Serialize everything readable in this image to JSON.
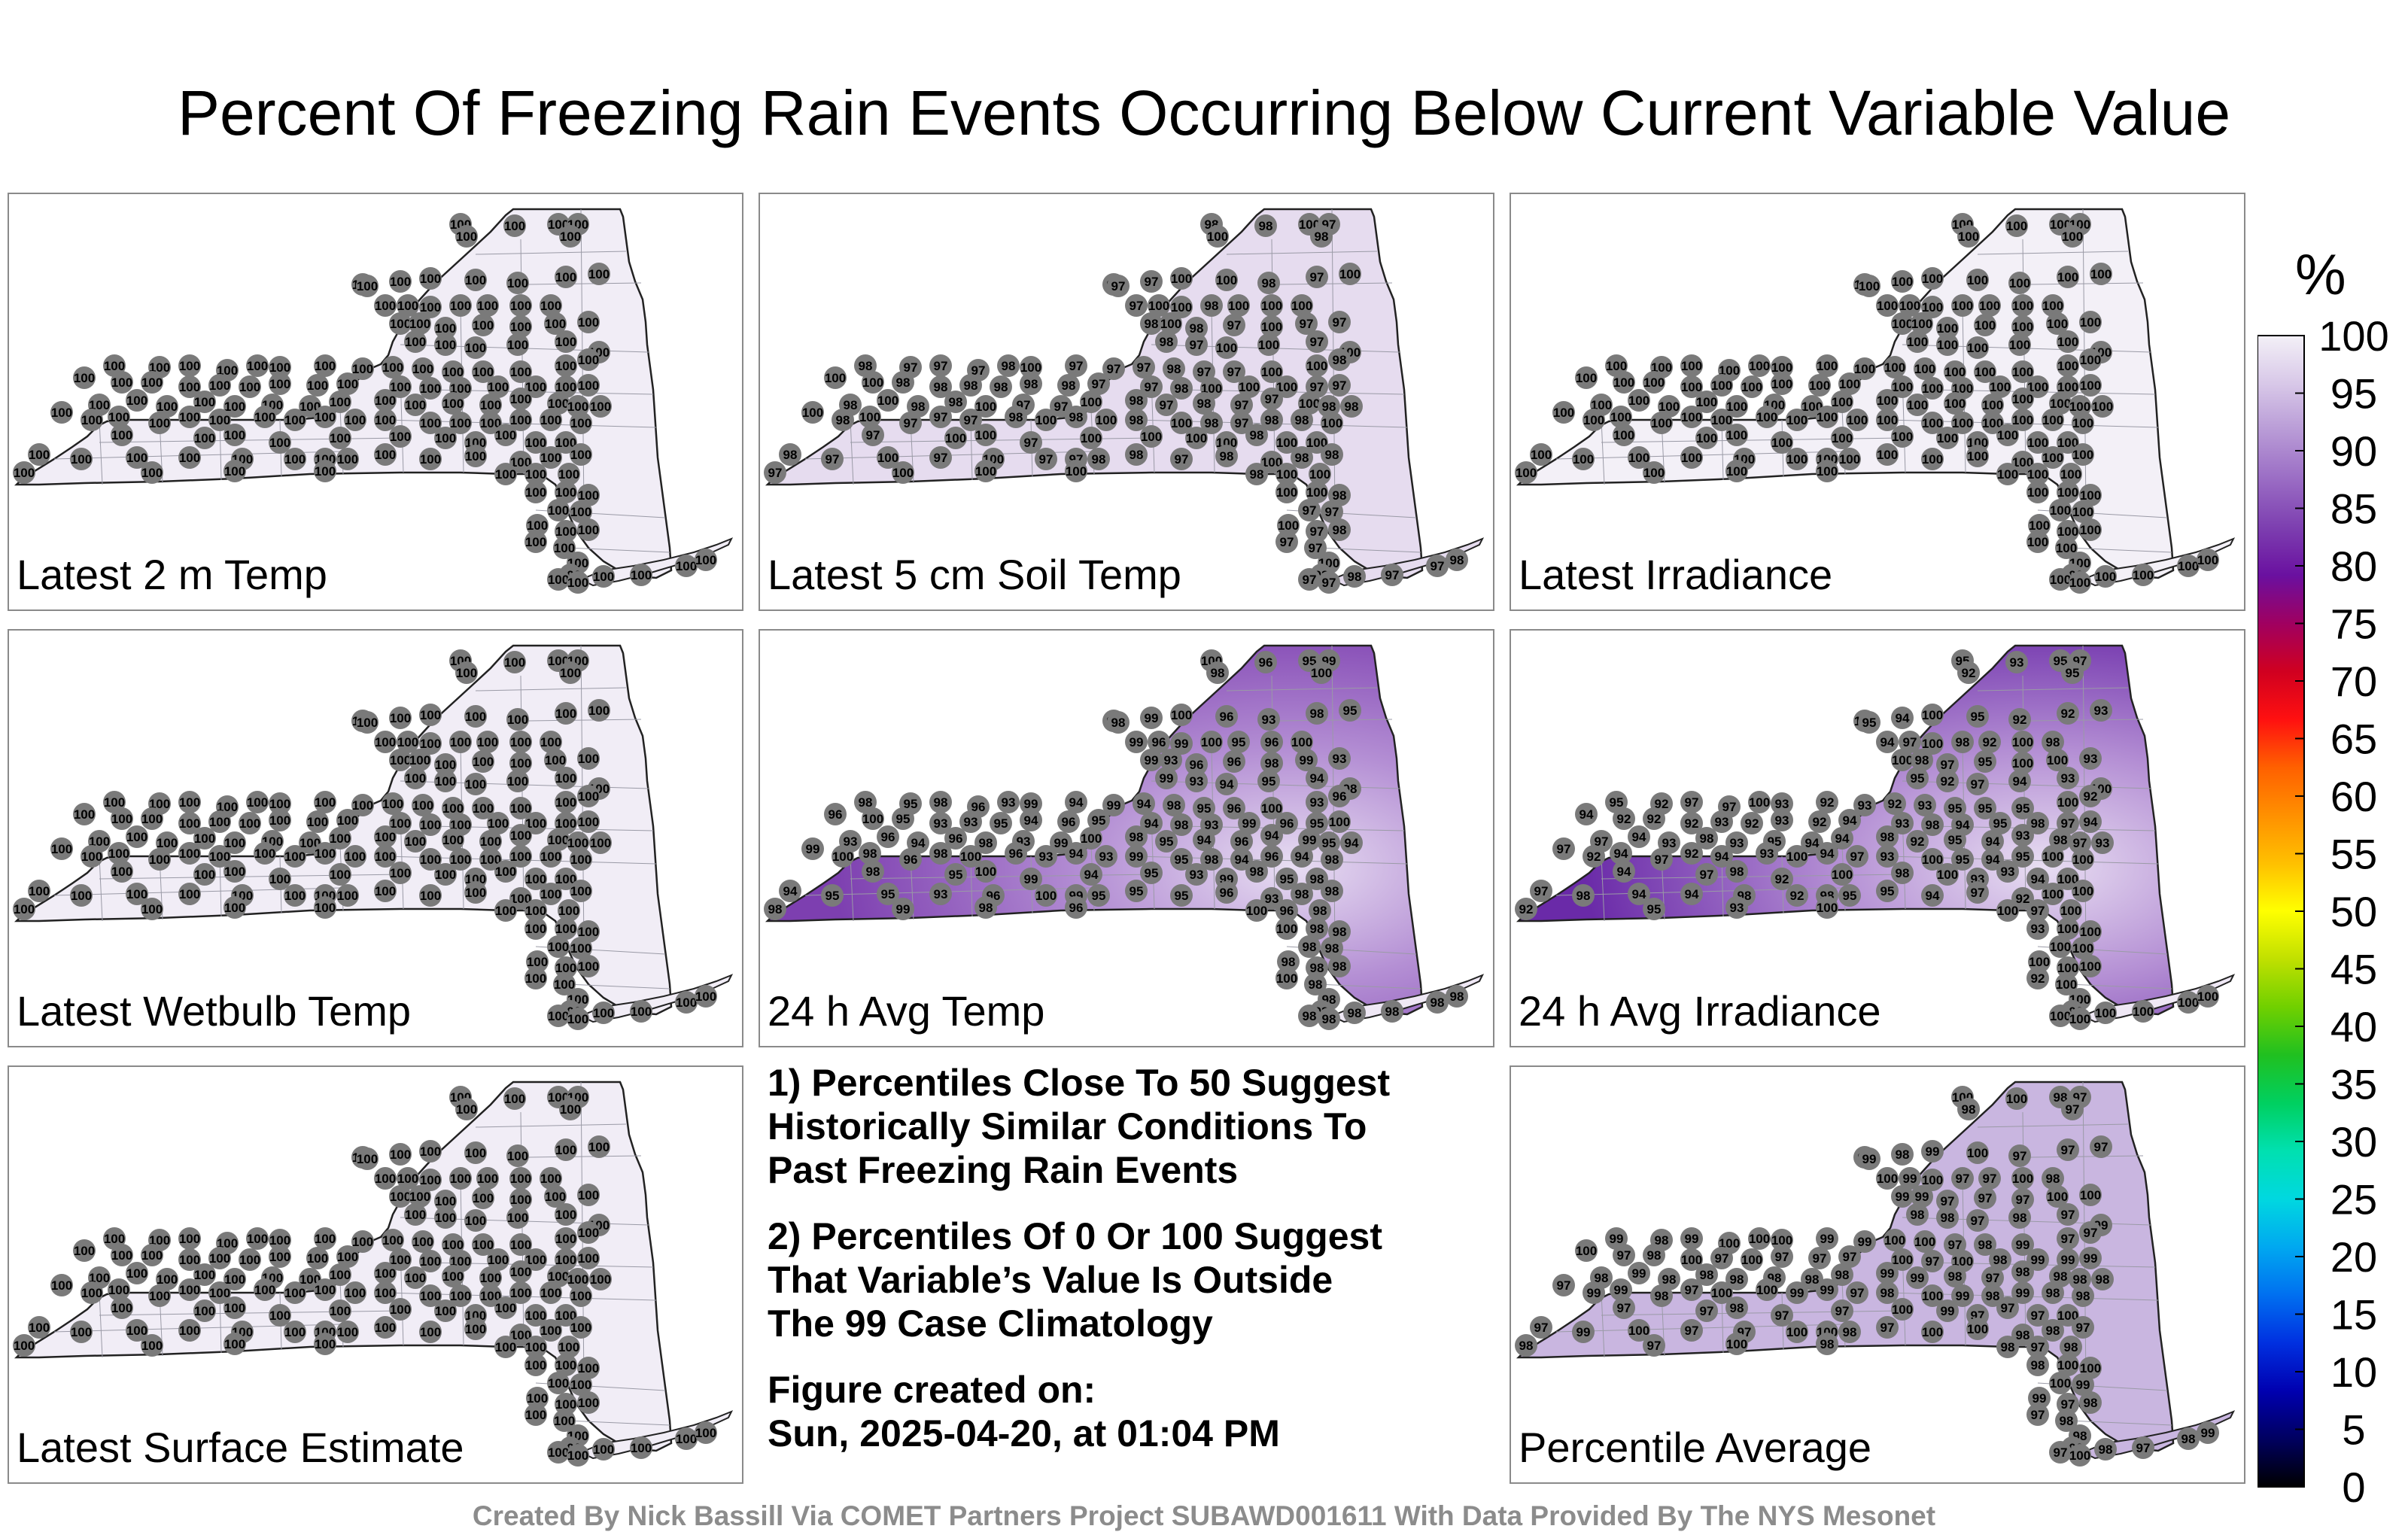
{
  "title": "Percent Of Freezing Rain Events Occurring Below Current Variable Value",
  "colors": {
    "state_fill_100": "#f1edf6",
    "station_dot": "#7a7a7a",
    "outline": "#222222",
    "county_lines": "#9a9aa6"
  },
  "panels": [
    {
      "id": "p1",
      "label": "Latest 2 m Temp",
      "fill": "#f1edf6",
      "heavy": false
    },
    {
      "id": "p2",
      "label": "Latest 5 cm Soil Temp",
      "fill": "#e6dcef",
      "heavy": false
    },
    {
      "id": "p3",
      "label": "Latest Irradiance",
      "fill": "#f3f0f7",
      "heavy": false
    },
    {
      "id": "p4",
      "label": "Latest Wetbulb Temp",
      "fill": "#f1edf6",
      "heavy": false
    },
    {
      "id": "p5",
      "label": "24 h Avg Temp",
      "fill": "#7d3fb0",
      "heavy": true
    },
    {
      "id": "p6",
      "label": "24 h Avg Irradiance",
      "fill": "#6a2aa8",
      "heavy": true
    },
    {
      "id": "p7",
      "label": "Latest Surface Estimate",
      "fill": "#f1edf6",
      "heavy": false
    },
    {
      "id": "p9",
      "label": "Percentile Average",
      "fill": "#c9b6e0",
      "heavy": false
    }
  ],
  "station_values": {
    "p1": [
      "100"
    ],
    "p2": [
      "100",
      "97",
      "98"
    ],
    "p3": [
      "100"
    ],
    "p4": [
      "100"
    ],
    "p5": [
      "93",
      "94",
      "96",
      "95",
      "99",
      "100",
      "98"
    ],
    "p6": [
      "92",
      "93",
      "94",
      "95",
      "97",
      "98",
      "100"
    ],
    "p7": [
      "100"
    ],
    "p9": [
      "98",
      "99",
      "97",
      "100"
    ]
  },
  "notes": [
    [
      "1) Percentiles Close To 50 Suggest",
      "Historically Similar Conditions To",
      "Past Freezing Rain Events"
    ],
    [
      "2) Percentiles Of 0 Or 100 Suggest",
      "That Variable’s Value Is Outside",
      "The 99 Case Climatology"
    ],
    [
      "Figure created on:",
      "Sun, 2025-04-20, at 01:04 PM"
    ]
  ],
  "colorbar": {
    "unit": "%",
    "ticks": [
      "100",
      "95",
      "90",
      "85",
      "80",
      "75",
      "70",
      "65",
      "60",
      "55",
      "50",
      "45",
      "40",
      "35",
      "30",
      "25",
      "20",
      "15",
      "10",
      "5",
      "0"
    ],
    "colors": [
      "#000000",
      "#000060",
      "#0000b0",
      "#0030e0",
      "#0070f0",
      "#00a8f0",
      "#00d8e0",
      "#00e0b0",
      "#00d060",
      "#20c020",
      "#70d000",
      "#c0e000",
      "#ffff00",
      "#ffc000",
      "#ff9000",
      "#ff6000",
      "#ff1010",
      "#d00020",
      "#a00060",
      "#6a10a0",
      "#7d3fb0",
      "#9a6cc4",
      "#b89ad6",
      "#d8c8e8",
      "#f3f0f7"
    ]
  },
  "footer": "Created By Nick Bassill Via COMET Partners Project SUBAWD001611 With Data Provided By The NYS Mesonet"
}
